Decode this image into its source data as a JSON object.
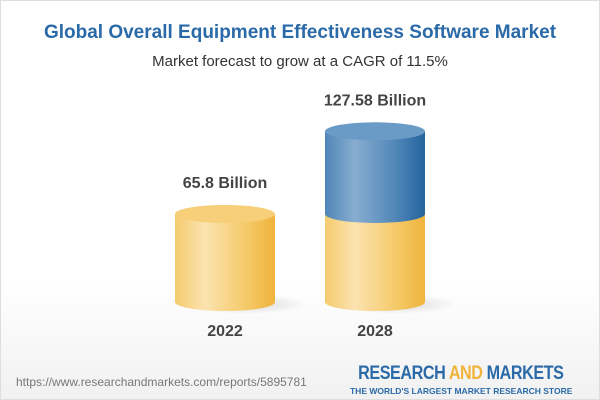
{
  "chart_data": {
    "type": "bar",
    "style": "3d-cylinder",
    "title": "Global Overall Equipment Effectiveness Software Market",
    "subtitle": "Market forecast to grow at a CAGR of 11.5%",
    "categories": [
      "2022",
      "2028"
    ],
    "values": [
      65.8,
      127.58
    ],
    "data_labels": [
      "65.8 Billion",
      "127.58 Billion"
    ],
    "unit": "Billion",
    "colors": {
      "base": "#f2c15a",
      "growth": "#3f7bb0"
    },
    "grid": false
  },
  "footer": {
    "url": "https://www.researchandmarkets.com/reports/5895781",
    "logo_part1": "RESEARCH ",
    "logo_part2": "AND",
    "logo_part3": " MARKETS",
    "tagline": "THE WORLD'S LARGEST MARKET RESEARCH STORE"
  }
}
